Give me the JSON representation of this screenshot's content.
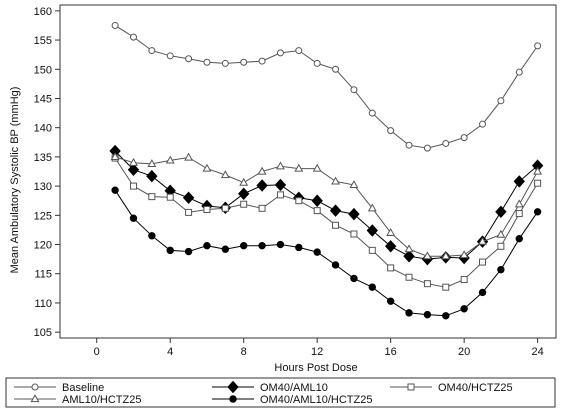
{
  "chart_data": {
    "type": "line",
    "title": "",
    "xlabel": "Hours Post Dose",
    "ylabel": "Mean Ambulatory Systolic BP (mmHg)",
    "xlim": [
      -2,
      25
    ],
    "ylim": [
      104,
      161
    ],
    "xticks": [
      0,
      4,
      8,
      12,
      16,
      20,
      24
    ],
    "yticks": [
      105,
      110,
      115,
      120,
      125,
      130,
      135,
      140,
      145,
      150,
      155,
      160
    ],
    "grid": false,
    "legend_position": "bottom",
    "series": [
      {
        "name": "Baseline",
        "marker": "circle-open",
        "color": "#555555",
        "x": [
          1,
          2,
          3,
          4,
          5,
          6,
          7,
          8,
          9,
          10,
          11,
          12,
          13,
          14,
          15,
          16,
          17,
          18,
          19,
          20,
          21,
          22,
          23,
          24
        ],
        "values": [
          157.5,
          155.5,
          153.2,
          152.3,
          151.8,
          151.2,
          151.0,
          151.2,
          151.4,
          152.8,
          153.2,
          151.0,
          150.0,
          146.5,
          142.5,
          139.5,
          137.0,
          136.5,
          137.3,
          138.3,
          140.6,
          144.6,
          149.5,
          154.0
        ]
      },
      {
        "name": "OM40/AML10",
        "marker": "diamond-filled",
        "color": "#000000",
        "x": [
          1,
          2,
          3,
          4,
          5,
          6,
          7,
          8,
          9,
          10,
          11,
          12,
          13,
          14,
          15,
          16,
          17,
          18,
          19,
          20,
          21,
          22,
          23,
          24
        ],
        "values": [
          136.0,
          132.8,
          131.7,
          129.2,
          128.0,
          126.6,
          126.3,
          128.7,
          130.1,
          130.2,
          128.0,
          127.5,
          125.8,
          125.2,
          122.4,
          119.7,
          118.0,
          117.5,
          117.8,
          117.7,
          120.5,
          125.6,
          130.8,
          133.5
        ]
      },
      {
        "name": "OM40/HCTZ25",
        "marker": "square-open",
        "color": "#555555",
        "x": [
          1,
          2,
          3,
          4,
          5,
          6,
          7,
          8,
          9,
          10,
          11,
          12,
          13,
          14,
          15,
          16,
          17,
          18,
          19,
          20,
          21,
          22,
          23,
          24
        ],
        "values": [
          134.8,
          130.0,
          128.2,
          128.1,
          125.5,
          126.0,
          126.2,
          126.9,
          126.2,
          128.5,
          127.5,
          125.8,
          123.3,
          121.8,
          119.0,
          116.0,
          114.4,
          113.3,
          112.7,
          114.0,
          117.0,
          119.7,
          125.3,
          130.5
        ]
      },
      {
        "name": "AML10/HCTZ25",
        "marker": "triangle-open",
        "color": "#555555",
        "x": [
          1,
          2,
          3,
          4,
          5,
          6,
          7,
          8,
          9,
          10,
          11,
          12,
          13,
          14,
          15,
          16,
          17,
          18,
          19,
          20,
          21,
          22,
          23,
          24
        ],
        "values": [
          135.0,
          134.0,
          133.8,
          134.4,
          134.9,
          133.0,
          131.9,
          130.6,
          132.5,
          133.4,
          133.0,
          133.0,
          130.8,
          130.2,
          126.2,
          122.0,
          119.2,
          118.0,
          118.0,
          118.2,
          120.5,
          121.7,
          126.9,
          132.5
        ]
      },
      {
        "name": "OM40/AML10/HCTZ25",
        "marker": "circle-filled",
        "color": "#000000",
        "x": [
          1,
          2,
          3,
          4,
          5,
          6,
          7,
          8,
          9,
          10,
          11,
          12,
          13,
          14,
          15,
          16,
          17,
          18,
          19,
          20,
          21,
          22,
          23,
          24
        ],
        "values": [
          129.3,
          124.5,
          121.5,
          119.0,
          118.8,
          119.8,
          119.2,
          119.8,
          119.8,
          120.0,
          119.5,
          118.7,
          116.5,
          114.2,
          112.7,
          110.3,
          108.3,
          108.0,
          107.8,
          109.0,
          111.8,
          115.7,
          121.0,
          125.6
        ]
      }
    ]
  }
}
